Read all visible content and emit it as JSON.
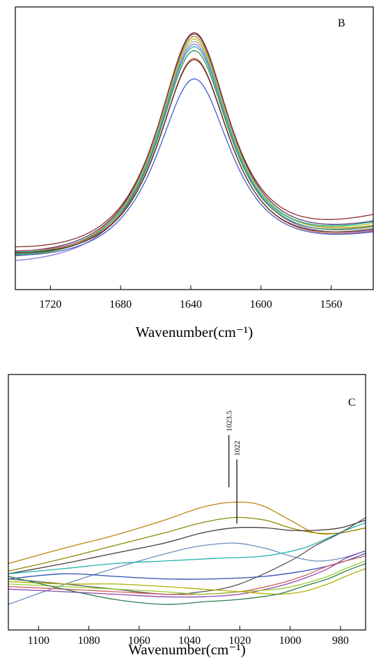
{
  "chart_data": [
    {
      "type": "line",
      "panel_label": "B",
      "xlabel": "Wavenumber(cm⁻¹)",
      "ylabel": "",
      "xlim": [
        1740,
        1536
      ],
      "x_reversed": true,
      "ylim": [
        0,
        1.1
      ],
      "grid": false,
      "legend": "none",
      "x_ticks": [
        1720,
        1680,
        1640,
        1600,
        1560
      ],
      "series": [
        {
          "color": "#8B2E2E",
          "peak_x": 1638,
          "peak": 1.0,
          "base_left": 0.12,
          "base_right": 0.27,
          "width": 27
        },
        {
          "color": "#5A3A6E",
          "peak_x": 1638,
          "peak": 0.995,
          "base_left": 0.1,
          "base_right": 0.24,
          "width": 27
        },
        {
          "color": "#B8860B",
          "peak_x": 1638,
          "peak": 0.985,
          "base_left": 0.09,
          "base_right": 0.22,
          "width": 27
        },
        {
          "color": "#9ACD32",
          "peak_x": 1638,
          "peak": 0.975,
          "base_left": 0.08,
          "base_right": 0.23,
          "width": 27
        },
        {
          "color": "#A9A9A9",
          "peak_x": 1638,
          "peak": 0.965,
          "base_left": 0.09,
          "base_right": 0.21,
          "width": 27
        },
        {
          "color": "#9370DB",
          "peak_x": 1638,
          "peak": 0.955,
          "base_left": 0.06,
          "base_right": 0.2,
          "width": 27
        },
        {
          "color": "#20B2AA",
          "peak_x": 1638,
          "peak": 0.945,
          "base_left": 0.1,
          "base_right": 0.24,
          "width": 27
        },
        {
          "color": "#2E8B57",
          "peak_x": 1638,
          "peak": 0.93,
          "base_left": 0.09,
          "base_right": 0.22,
          "width": 27
        },
        {
          "color": "#CD5C5C",
          "peak_x": 1638,
          "peak": 0.9,
          "base_left": 0.11,
          "base_right": 0.2,
          "width": 27
        },
        {
          "color": "#5C3317",
          "peak_x": 1638,
          "peak": 0.895,
          "base_left": 0.1,
          "base_right": 0.21,
          "width": 27
        },
        {
          "color": "#3A5FCD",
          "peak_x": 1638,
          "peak": 0.82,
          "base_left": 0.09,
          "base_right": 0.2,
          "width": 28
        }
      ]
    },
    {
      "type": "line",
      "panel_label": "C",
      "xlabel": "Wavenumber(cm⁻¹)",
      "ylabel": "",
      "xlim": [
        1112,
        970
      ],
      "x_reversed": true,
      "ylim": [
        0,
        1.0
      ],
      "grid": false,
      "legend": "none",
      "x_ticks": [
        1100,
        1080,
        1060,
        1040,
        1020,
        1000,
        980
      ],
      "annotations": [
        {
          "text": "1023.5",
          "x": 1023.5
        },
        {
          "text": "1022",
          "x": 1022
        }
      ],
      "series": [
        {
          "color": "#B8860B",
          "x": [
            1112,
            1090,
            1070,
            1050,
            1035,
            1023,
            1012,
            1000,
            990,
            980,
            970
          ],
          "y": [
            0.26,
            0.32,
            0.37,
            0.43,
            0.48,
            0.5,
            0.49,
            0.43,
            0.38,
            0.38,
            0.4
          ]
        },
        {
          "color": "#8B8B00",
          "x": [
            1112,
            1090,
            1070,
            1050,
            1035,
            1022,
            1010,
            1000,
            990,
            980,
            970
          ],
          "y": [
            0.23,
            0.28,
            0.33,
            0.38,
            0.42,
            0.44,
            0.43,
            0.4,
            0.38,
            0.38,
            0.4
          ]
        },
        {
          "color": "#4B3A3A",
          "x": [
            1112,
            1090,
            1070,
            1050,
            1035,
            1022,
            1010,
            1000,
            990,
            980,
            970
          ],
          "y": [
            0.22,
            0.26,
            0.3,
            0.34,
            0.38,
            0.4,
            0.4,
            0.39,
            0.39,
            0.4,
            0.43
          ]
        },
        {
          "color": "#6A8FBF",
          "x": [
            1112,
            1095,
            1080,
            1060,
            1045,
            1035,
            1022,
            1010,
            1000,
            990,
            980,
            970
          ],
          "y": [
            0.1,
            0.16,
            0.21,
            0.27,
            0.31,
            0.33,
            0.34,
            0.32,
            0.29,
            0.27,
            0.28,
            0.31
          ]
        },
        {
          "color": "#20B2AA",
          "x": [
            1112,
            1090,
            1070,
            1050,
            1030,
            1010,
            995,
            985,
            978,
            970
          ],
          "y": [
            0.22,
            0.24,
            0.26,
            0.27,
            0.28,
            0.29,
            0.32,
            0.36,
            0.39,
            0.42
          ]
        },
        {
          "color": "#2B4FAF",
          "x": [
            1112,
            1090,
            1070,
            1050,
            1030,
            1010,
            995,
            985,
            978,
            970
          ],
          "y": [
            0.2,
            0.22,
            0.21,
            0.2,
            0.2,
            0.21,
            0.23,
            0.25,
            0.27,
            0.3
          ]
        },
        {
          "color": "#555555",
          "x": [
            1112,
            1090,
            1070,
            1050,
            1035,
            1020,
            1000,
            990,
            980,
            970
          ],
          "y": [
            0.2,
            0.18,
            0.16,
            0.14,
            0.15,
            0.18,
            0.27,
            0.33,
            0.38,
            0.44
          ]
        },
        {
          "color": "#8E44AD",
          "x": [
            1112,
            1090,
            1070,
            1050,
            1035,
            1020,
            1005,
            995,
            985,
            978,
            970
          ],
          "y": [
            0.16,
            0.15,
            0.14,
            0.13,
            0.13,
            0.14,
            0.17,
            0.2,
            0.24,
            0.28,
            0.31
          ]
        },
        {
          "color": "#CD5C5C",
          "x": [
            1112,
            1090,
            1070,
            1050,
            1035,
            1020,
            1005,
            995,
            985,
            978,
            970
          ],
          "y": [
            0.17,
            0.16,
            0.15,
            0.14,
            0.14,
            0.15,
            0.18,
            0.21,
            0.25,
            0.27,
            0.29
          ]
        },
        {
          "color": "#9ACD32",
          "x": [
            1112,
            1090,
            1070,
            1050,
            1035,
            1020,
            1005,
            995,
            985,
            978,
            970
          ],
          "y": [
            0.18,
            0.17,
            0.16,
            0.15,
            0.14,
            0.15,
            0.16,
            0.18,
            0.21,
            0.24,
            0.27
          ]
        },
        {
          "color": "#B0B000",
          "x": [
            1112,
            1090,
            1070,
            1050,
            1035,
            1020,
            1005,
            995,
            985,
            978,
            970
          ],
          "y": [
            0.19,
            0.18,
            0.18,
            0.17,
            0.16,
            0.15,
            0.14,
            0.15,
            0.18,
            0.21,
            0.24
          ]
        },
        {
          "color": "#2E7D4F",
          "x": [
            1112,
            1090,
            1070,
            1050,
            1035,
            1020,
            1005,
            995,
            985,
            978,
            970
          ],
          "y": [
            0.21,
            0.16,
            0.12,
            0.1,
            0.11,
            0.12,
            0.14,
            0.17,
            0.2,
            0.23,
            0.26
          ]
        }
      ]
    }
  ]
}
